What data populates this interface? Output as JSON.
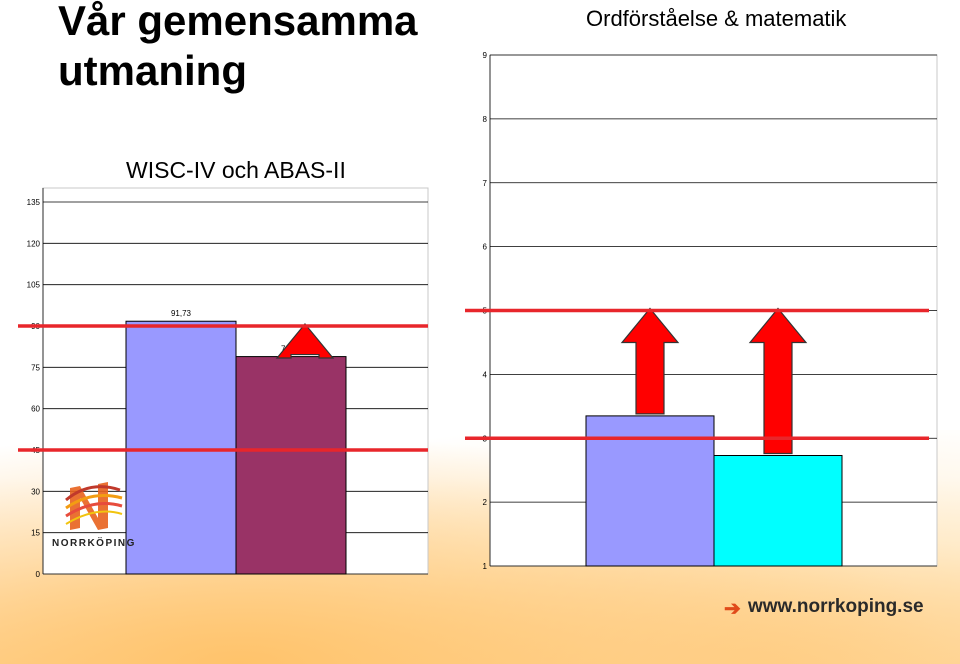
{
  "slide": {
    "title": "Vår gemensamma utmaning",
    "logo_text": "NORRKÖPING",
    "footer_url": "www.norrkoping.se",
    "footer_arrow": "➔"
  },
  "colors": {
    "series_a": "#9999ff",
    "series_b": "#993366",
    "series_c": "#00ffff",
    "target_line": "#e8262b",
    "arrow": "#ff0000"
  },
  "chart_data": [
    {
      "type": "bar",
      "title": "WISC-IV och ABAS-II",
      "xlabel": "",
      "ylabel": "",
      "ylim": [
        0,
        135
      ],
      "yticks": [
        "0",
        "15",
        "30",
        "45",
        "60",
        "75",
        "90",
        "105",
        "120",
        "135"
      ],
      "grid": true,
      "series": [
        {
          "values": [
            91.73
          ],
          "label": "91,73"
        },
        {
          "values": [
            78.9
          ],
          "label": "78,90"
        }
      ],
      "reference_lines": [
        45,
        90
      ],
      "arrows": [
        {
          "series": 1,
          "from": 78.9,
          "to": 90
        }
      ]
    },
    {
      "type": "bar",
      "title": "Ordförståelse & matematik",
      "xlabel": "",
      "ylabel": "",
      "ylim": [
        1,
        9
      ],
      "yticks": [
        "1",
        "2",
        "3",
        "4",
        "5",
        "6",
        "7",
        "8",
        "9"
      ],
      "grid": true,
      "series": [
        {
          "values": [
            3.35
          ],
          "label": "3,35"
        },
        {
          "values": [
            2.73
          ],
          "label": "2,73"
        }
      ],
      "reference_lines": [
        3,
        5
      ],
      "arrows": [
        {
          "series": 0,
          "from": 3.35,
          "to": 5
        },
        {
          "series": 1,
          "from": 2.73,
          "to": 5
        }
      ]
    }
  ]
}
